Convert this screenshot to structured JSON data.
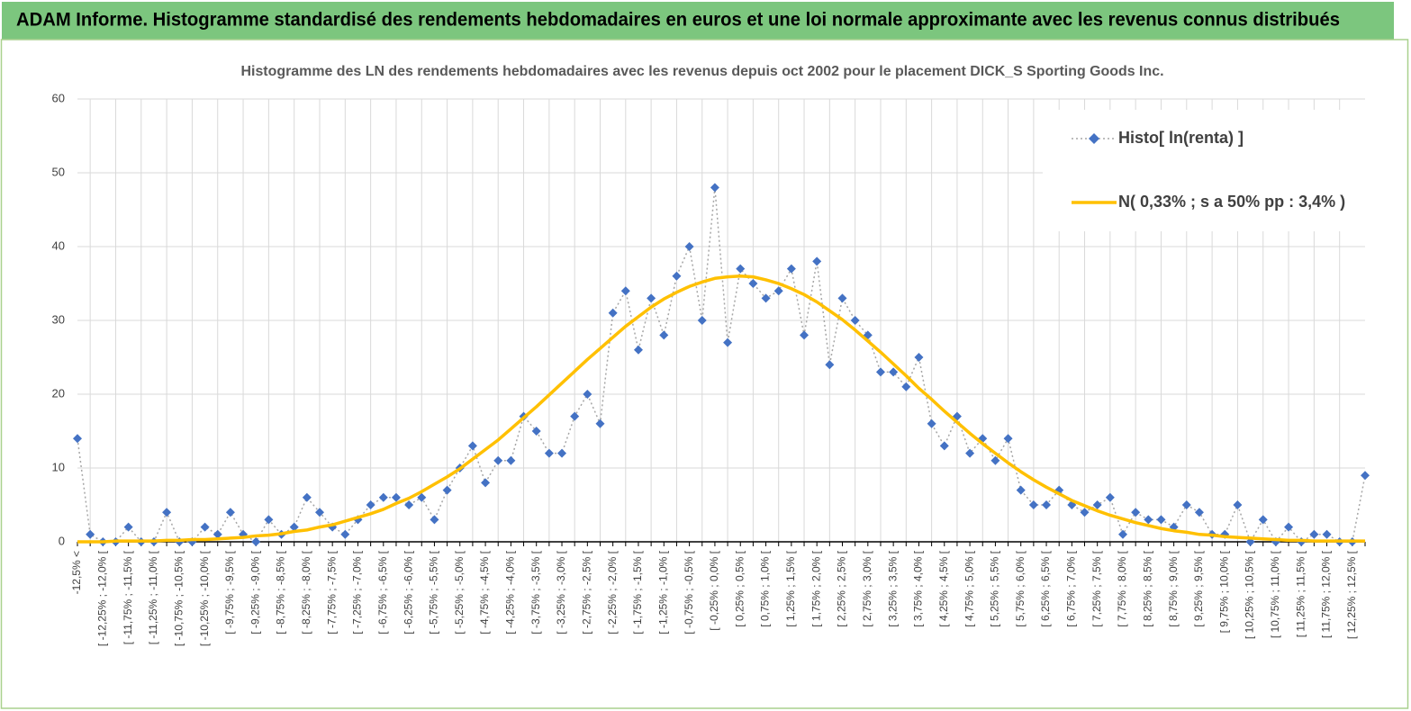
{
  "banner": {
    "title": "ADAM Informe. Histogramme standardisé des rendements hebdomadaires en euros et une loi normale approximante avec les revenus connus distribués"
  },
  "chart_data": {
    "type": "line",
    "title": "Histogramme  des LN des rendements hebdomadaires avec les revenus depuis oct 2002 pour le placement DICK_S Sporting Goods Inc.",
    "categories": [
      "-12,5% <",
      null,
      "[ -12,25% ; -12,0% [",
      null,
      "[ -11,75% ; -11,5% [",
      null,
      "[ -11,25% ; -11,0% [",
      null,
      "[ -10,75% ; -10,5% [",
      null,
      "[ -10,25% ; -10,0% [",
      null,
      "[ -9,75% ; -9,5% [",
      null,
      "[ -9,25% ; -9,0% [",
      null,
      "[ -8,75% ; -8,5% [",
      null,
      "[ -8,25% ; -8,0% [",
      null,
      "[ -7,75% ; -7,5% [",
      null,
      "[ -7,25% ; -7,0% [",
      null,
      "[ -6,75% ; -6,5% [",
      null,
      "[ -6,25% ; -6,0% [",
      null,
      "[ -5,75% ; -5,5% [",
      null,
      "[ -5,25% ; -5,0% [",
      null,
      "[ -4,75% ; -4,5% [",
      null,
      "[ -4,25% ; -4,0% [",
      null,
      "[ -3,75% ; -3,5% [",
      null,
      "[ -3,25% ; -3,0% [",
      null,
      "[ -2,75% ; -2,5% [",
      null,
      "[ -2,25% ; -2,0% [",
      null,
      "[ -1,75% ; -1,5% [",
      null,
      "[ -1,25% ; -1,0% [",
      null,
      "[ -0,75% ; -0,5% [",
      null,
      "[ -0,25% ; 0,0% [",
      null,
      "[ 0,25% ; 0,5% [",
      null,
      "[ 0,75% ; 1,0% [",
      null,
      "[ 1,25% ; 1,5% [",
      null,
      "[ 1,75% ; 2,0% [",
      null,
      "[ 2,25% ; 2,5% [",
      null,
      "[ 2,75% ; 3,0% [",
      null,
      "[ 3,25% ; 3,5% [",
      null,
      "[ 3,75% ; 4,0% [",
      null,
      "[ 4,25% ; 4,5% [",
      null,
      "[ 4,75% ; 5,0% [",
      null,
      "[ 5,25% ; 5,5% [",
      null,
      "[ 5,75% ; 6,0% [",
      null,
      "[ 6,25% ; 6,5% [",
      null,
      "[ 6,75% ; 7,0% [",
      null,
      "[ 7,25% ; 7,5% [",
      null,
      "[ 7,75% ; 8,0% [",
      null,
      "[ 8,25% ; 8,5% [",
      null,
      "[ 8,75% ; 9,0% [",
      null,
      "[ 9,25% ; 9,5% [",
      null,
      "[ 9,75% ; 10,0% [",
      null,
      "[ 10,25% ; 10,5% [",
      null,
      "[ 10,75% ; 11,0% [",
      null,
      "[ 11,25% ; 11,5% [",
      null,
      "[ 11,75% ; 12,0% [",
      null,
      "[ 12,25% ; 12,5% [",
      null
    ],
    "series": [
      {
        "name": "Histo[ ln(renta) ]",
        "color": "#4472c4",
        "line_color": "#a6a6a6",
        "marker": "diamond",
        "dashed": true,
        "values": [
          14,
          1,
          0,
          0,
          2,
          0,
          0,
          4,
          0,
          0,
          2,
          1,
          4,
          1,
          0,
          3,
          1,
          2,
          6,
          4,
          2,
          1,
          3,
          5,
          6,
          6,
          5,
          6,
          3,
          7,
          10,
          13,
          8,
          11,
          11,
          17,
          15,
          12,
          12,
          17,
          20,
          16,
          31,
          34,
          26,
          33,
          28,
          36,
          40,
          30,
          48,
          27,
          37,
          35,
          33,
          34,
          37,
          28,
          38,
          24,
          33,
          30,
          28,
          23,
          23,
          21,
          25,
          16,
          13,
          17,
          12,
          14,
          11,
          14,
          7,
          5,
          5,
          7,
          5,
          4,
          5,
          6,
          1,
          4,
          3,
          3,
          2,
          5,
          4,
          1,
          1,
          5,
          0,
          3,
          0,
          2,
          0,
          1,
          1,
          0,
          0,
          9
        ]
      },
      {
        "name": "N( 0,33% ; s a 50% pp : 3,4% )",
        "color": "#ffc000",
        "marker": "none",
        "dashed": false,
        "values": [
          0.0,
          0.0,
          0.0,
          0.1,
          0.1,
          0.1,
          0.1,
          0.2,
          0.2,
          0.3,
          0.3,
          0.4,
          0.5,
          0.6,
          0.8,
          0.9,
          1.1,
          1.4,
          1.6,
          2.0,
          2.3,
          2.8,
          3.3,
          3.8,
          4.4,
          5.2,
          5.9,
          6.8,
          7.8,
          8.8,
          9.9,
          11.2,
          12.5,
          13.8,
          15.3,
          16.8,
          18.3,
          19.9,
          21.5,
          23.1,
          24.7,
          26.2,
          27.7,
          29.2,
          30.5,
          31.8,
          32.9,
          33.8,
          34.6,
          35.2,
          35.7,
          35.9,
          36.0,
          35.9,
          35.5,
          35.0,
          34.3,
          33.5,
          32.5,
          31.3,
          30.1,
          28.7,
          27.2,
          25.7,
          24.1,
          22.5,
          20.8,
          19.3,
          17.7,
          16.2,
          14.7,
          13.3,
          12.0,
          10.7,
          9.5,
          8.4,
          7.4,
          6.5,
          5.6,
          4.9,
          4.2,
          3.6,
          3.1,
          2.6,
          2.2,
          1.8,
          1.5,
          1.3,
          1.0,
          0.9,
          0.7,
          0.6,
          0.5,
          0.4,
          0.3,
          0.2,
          0.2,
          0.1,
          0.1,
          0.1,
          0.1,
          0.1
        ]
      }
    ],
    "ylim": [
      0,
      60
    ],
    "yticks": [
      0,
      10,
      20,
      30,
      40,
      50,
      60
    ],
    "grid": true,
    "legend": "top-right"
  }
}
